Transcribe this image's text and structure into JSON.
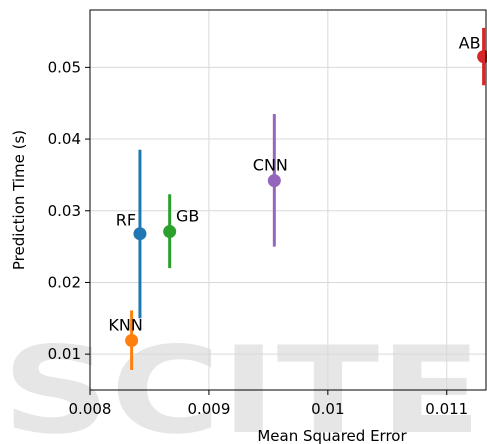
{
  "chart_data": {
    "type": "scatter",
    "title": "",
    "xlabel": "Mean Squared Error",
    "ylabel": "Prediction Time (s)",
    "xlim": [
      0.008,
      0.01133
    ],
    "ylim": [
      0.005,
      0.058
    ],
    "xticks": [
      0.008,
      0.009,
      0.01,
      0.011
    ],
    "xtick_labels": [
      "0.008",
      "0.009",
      "0.01",
      "0.011"
    ],
    "yticks": [
      0.01,
      0.02,
      0.03,
      0.04,
      0.05
    ],
    "ytick_labels": [
      "0.01",
      "0.02",
      "0.03",
      "0.04",
      "0.05"
    ],
    "grid": true,
    "watermark": "SCITE",
    "points": [
      {
        "label": "AB",
        "x": 0.01131,
        "y": 0.0515,
        "y_low": 0.0475,
        "y_high": 0.0555,
        "color": "#d62728"
      },
      {
        "label": "CNN",
        "x": 0.00955,
        "y": 0.0342,
        "y_low": 0.025,
        "y_high": 0.0435,
        "color": "#9467bd"
      },
      {
        "label": "RF",
        "x": 0.00842,
        "y": 0.0268,
        "y_low": 0.015,
        "y_high": 0.0385,
        "color": "#1f77b4"
      },
      {
        "label": "GB",
        "x": 0.00867,
        "y": 0.0271,
        "y_low": 0.022,
        "y_high": 0.0323,
        "color": "#2ca02c"
      },
      {
        "label": "KNN",
        "x": 0.00835,
        "y": 0.0119,
        "y_low": 0.0078,
        "y_high": 0.0161,
        "color": "#ff7f0e"
      }
    ]
  }
}
